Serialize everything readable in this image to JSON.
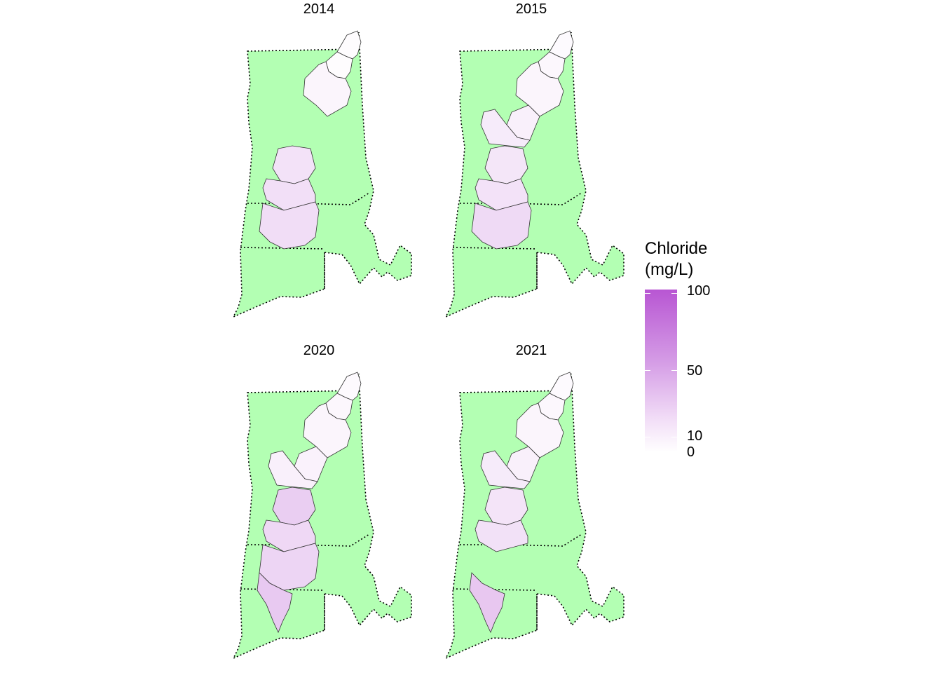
{
  "chart_data": [
    {
      "type": "choropleth",
      "title": "2014",
      "units": "Chloride (mg/L)",
      "watersheds": [
        {
          "id": "ws1",
          "value": 1
        },
        {
          "id": "ws2",
          "value": 1
        },
        {
          "id": "ws3",
          "value": 4
        },
        {
          "id": "ws6",
          "value": 12
        },
        {
          "id": "ws7",
          "value": 14
        },
        {
          "id": "ws8",
          "value": 15
        }
      ]
    },
    {
      "type": "choropleth",
      "title": "2015",
      "units": "Chloride (mg/L)",
      "watersheds": [
        {
          "id": "ws1",
          "value": 2
        },
        {
          "id": "ws2",
          "value": 3
        },
        {
          "id": "ws3",
          "value": 4
        },
        {
          "id": "ws4",
          "value": 6
        },
        {
          "id": "ws5",
          "value": 8
        },
        {
          "id": "ws6",
          "value": 10
        },
        {
          "id": "ws7",
          "value": 12
        },
        {
          "id": "ws8",
          "value": 17
        }
      ]
    },
    {
      "type": "choropleth",
      "title": "2020",
      "units": "Chloride (mg/L)",
      "watersheds": [
        {
          "id": "ws1",
          "value": 2
        },
        {
          "id": "ws2",
          "value": 3
        },
        {
          "id": "ws3",
          "value": 4
        },
        {
          "id": "ws4",
          "value": 5
        },
        {
          "id": "ws5",
          "value": 6
        },
        {
          "id": "ws6",
          "value": 24
        },
        {
          "id": "ws7",
          "value": 18
        },
        {
          "id": "ws8",
          "value": 20
        },
        {
          "id": "ws9",
          "value": 27
        }
      ]
    },
    {
      "type": "choropleth",
      "title": "2021",
      "units": "Chloride (mg/L)",
      "watersheds": [
        {
          "id": "ws1",
          "value": 2
        },
        {
          "id": "ws2",
          "value": 3
        },
        {
          "id": "ws3",
          "value": 4
        },
        {
          "id": "ws4",
          "value": 6
        },
        {
          "id": "ws5",
          "value": 8
        },
        {
          "id": "ws6",
          "value": 11
        },
        {
          "id": "ws7",
          "value": 13
        },
        {
          "id": "ws9",
          "value": 28
        }
      ]
    }
  ],
  "legend": {
    "title_line1": "Chloride",
    "title_line2": "(mg/L)",
    "ticks": [
      {
        "label": "100",
        "value": 100
      },
      {
        "label": "50",
        "value": 50
      },
      {
        "label": "10",
        "value": 10
      },
      {
        "label": "0",
        "value": 0
      }
    ],
    "low_color": "#ffffff",
    "high_color": "#b856d3"
  },
  "colors": {
    "land": "#b3ffb3",
    "state_border": "#000000",
    "watershed_border": "#333333"
  }
}
